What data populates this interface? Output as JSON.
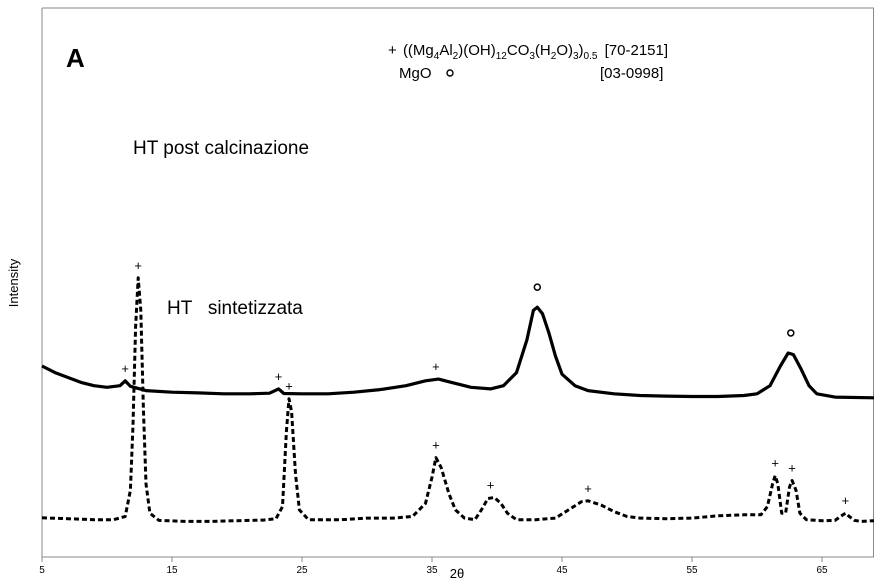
{
  "chart_data": {
    "type": "line",
    "panel_label": "A",
    "xlabel": "2θ",
    "ylabel": "Intensity",
    "xlim": [
      5,
      69
    ],
    "ylim": [
      0,
      100
    ],
    "x_ticks": [
      5,
      15,
      25,
      35,
      45,
      55,
      65
    ],
    "legend": {
      "phase1": {
        "symbol": "+",
        "formula": [
          {
            "t": "((Mg",
            "s": ""
          },
          {
            "t": "4",
            "s": "sub"
          },
          {
            "t": "Al",
            "s": ""
          },
          {
            "t": "2",
            "s": "sub"
          },
          {
            "t": ")(OH)",
            "s": ""
          },
          {
            "t": "12",
            "s": "sub"
          },
          {
            "t": "CO",
            "s": ""
          },
          {
            "t": "3",
            "s": "sub"
          },
          {
            "t": "(H",
            "s": ""
          },
          {
            "t": "2",
            "s": "sub"
          },
          {
            "t": "O)",
            "s": ""
          },
          {
            "t": "3",
            "s": "sub"
          },
          {
            "t": ")",
            "s": ""
          },
          {
            "t": "0.5",
            "s": "sub"
          }
        ],
        "code": "[70-2151]"
      },
      "phase2": {
        "symbol": "o",
        "name": "MgO",
        "code": "[03-0998]"
      }
    },
    "series": [
      {
        "name": "HT post calcinazione",
        "style": "solid",
        "points": [
          [
            5,
            48
          ],
          [
            6,
            46
          ],
          [
            7,
            44.5
          ],
          [
            8,
            43
          ],
          [
            9,
            42
          ],
          [
            10,
            41.5
          ],
          [
            11,
            42
          ],
          [
            11.4,
            43.5
          ],
          [
            11.8,
            41.8
          ],
          [
            13,
            40.5
          ],
          [
            15,
            40
          ],
          [
            17,
            39.8
          ],
          [
            19,
            39.5
          ],
          [
            21,
            39.5
          ],
          [
            22.5,
            39.7
          ],
          [
            23.2,
            41
          ],
          [
            23.6,
            39.6
          ],
          [
            25,
            39.5
          ],
          [
            27,
            39.5
          ],
          [
            29,
            40
          ],
          [
            31,
            40.8
          ],
          [
            33,
            42
          ],
          [
            34.5,
            43.5
          ],
          [
            35.5,
            44
          ],
          [
            36.5,
            43
          ],
          [
            38,
            41.5
          ],
          [
            39.5,
            41
          ],
          [
            40.5,
            42
          ],
          [
            41.5,
            46
          ],
          [
            42.3,
            56
          ],
          [
            42.8,
            65
          ],
          [
            43.1,
            66
          ],
          [
            43.5,
            64
          ],
          [
            44,
            58
          ],
          [
            44.5,
            51
          ],
          [
            45,
            45.5
          ],
          [
            46,
            42
          ],
          [
            47,
            40.5
          ],
          [
            49,
            39.5
          ],
          [
            51,
            39
          ],
          [
            53,
            38.8
          ],
          [
            55,
            38.7
          ],
          [
            57,
            38.7
          ],
          [
            59,
            39
          ],
          [
            60,
            39.5
          ],
          [
            61,
            42
          ],
          [
            61.8,
            48
          ],
          [
            62.4,
            52
          ],
          [
            62.8,
            51.5
          ],
          [
            63.4,
            47
          ],
          [
            64,
            42
          ],
          [
            64.6,
            39.5
          ],
          [
            66,
            38.5
          ],
          [
            69,
            38.3
          ]
        ],
        "markers": [
          {
            "x": 11.4,
            "y": 43.5,
            "symbol": "+"
          },
          {
            "x": 23.2,
            "y": 41.0,
            "symbol": "+"
          },
          {
            "x": 35.3,
            "y": 44.0,
            "symbol": "+"
          },
          {
            "x": 43.1,
            "y": 66.0,
            "symbol": "o"
          },
          {
            "x": 62.6,
            "y": 52.0,
            "symbol": "o"
          }
        ]
      },
      {
        "name": "HT   sintetizzata",
        "style": "dashed",
        "points": [
          [
            5,
            1.6
          ],
          [
            7,
            1.3
          ],
          [
            9,
            1
          ],
          [
            10.5,
            1
          ],
          [
            11.4,
            2
          ],
          [
            11.8,
            10
          ],
          [
            12.0,
            30
          ],
          [
            12.2,
            60
          ],
          [
            12.4,
            75
          ],
          [
            12.6,
            65
          ],
          [
            12.8,
            35
          ],
          [
            13,
            12
          ],
          [
            13.3,
            3
          ],
          [
            14,
            0.8
          ],
          [
            16,
            0.5
          ],
          [
            18,
            0.5
          ],
          [
            20,
            0.7
          ],
          [
            22,
            0.9
          ],
          [
            23,
            1.3
          ],
          [
            23.5,
            5
          ],
          [
            23.8,
            28
          ],
          [
            24.0,
            38
          ],
          [
            24.2,
            34
          ],
          [
            24.5,
            15
          ],
          [
            24.8,
            4
          ],
          [
            25.5,
            1
          ],
          [
            28,
            1
          ],
          [
            30,
            1.5
          ],
          [
            32,
            1.5
          ],
          [
            33.5,
            2
          ],
          [
            34.5,
            6
          ],
          [
            35.0,
            14
          ],
          [
            35.3,
            20
          ],
          [
            35.7,
            17
          ],
          [
            36.0,
            13
          ],
          [
            36.3,
            9
          ],
          [
            36.8,
            4
          ],
          [
            37.5,
            1.5
          ],
          [
            38.3,
            1
          ],
          [
            38.8,
            4
          ],
          [
            39.3,
            7.5
          ],
          [
            39.8,
            7.8
          ],
          [
            40.3,
            6
          ],
          [
            40.8,
            3
          ],
          [
            41.5,
            1
          ],
          [
            43,
            1
          ],
          [
            44.5,
            1.5
          ],
          [
            45.5,
            4
          ],
          [
            46.5,
            6.5
          ],
          [
            47,
            6.8
          ],
          [
            48,
            5.5
          ],
          [
            49,
            3.5
          ],
          [
            50,
            2
          ],
          [
            51,
            1.5
          ],
          [
            53,
            1.3
          ],
          [
            55,
            1.5
          ],
          [
            57,
            2.2
          ],
          [
            59,
            2.5
          ],
          [
            60.3,
            2.5
          ],
          [
            60.8,
            5
          ],
          [
            61.2,
            12
          ],
          [
            61.4,
            14.5
          ],
          [
            61.6,
            12
          ],
          [
            61.9,
            3
          ],
          [
            62.2,
            3
          ],
          [
            62.5,
            11
          ],
          [
            62.7,
            13
          ],
          [
            63.0,
            10
          ],
          [
            63.3,
            3
          ],
          [
            63.8,
            1
          ],
          [
            65,
            0.7
          ],
          [
            66,
            0.8
          ],
          [
            66.5,
            2.2
          ],
          [
            66.8,
            3
          ],
          [
            67.1,
            2
          ],
          [
            67.5,
            0.8
          ],
          [
            68,
            0.5
          ],
          [
            69,
            0.7
          ]
        ],
        "markers": [
          {
            "x": 12.4,
            "y": 75.0,
            "symbol": "+"
          },
          {
            "x": 24.0,
            "y": 38.0,
            "symbol": "+"
          },
          {
            "x": 35.3,
            "y": 20.0,
            "symbol": "+"
          },
          {
            "x": 39.5,
            "y": 7.8,
            "symbol": "+"
          },
          {
            "x": 47.0,
            "y": 6.8,
            "symbol": "+"
          },
          {
            "x": 61.4,
            "y": 14.5,
            "symbol": "+"
          },
          {
            "x": 62.7,
            "y": 13.0,
            "symbol": "+"
          },
          {
            "x": 66.8,
            "y": 3.0,
            "symbol": "+"
          }
        ]
      }
    ],
    "grid": false,
    "legend_placement": "top-center"
  }
}
